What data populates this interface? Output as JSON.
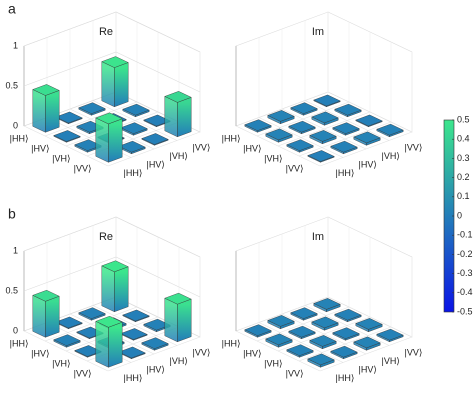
{
  "colorbar": {
    "clim": [
      -0.5,
      0.5
    ],
    "ticks": [
      0.5,
      0.4,
      0.3,
      0.2,
      0.1,
      0,
      -0.1,
      -0.2,
      -0.3,
      -0.4,
      -0.5
    ],
    "colormap": [
      "#0a14e6",
      "#3ce68c"
    ]
  },
  "chart_data": [
    {
      "type": "bar3d",
      "panel_label": "a",
      "title": "Re",
      "rows": [
        "|HH⟩",
        "|HV⟩",
        "|VH⟩",
        "|VV⟩"
      ],
      "columns": [
        "|HH⟩",
        "|HV⟩",
        "|VH⟩",
        "|VV⟩"
      ],
      "values": [
        [
          0.46,
          0.01,
          0.02,
          0.49
        ],
        [
          0.01,
          0.02,
          0.01,
          0.02
        ],
        [
          0.02,
          0.01,
          0.02,
          0.01
        ],
        [
          0.48,
          0.02,
          0.01,
          0.43
        ]
      ],
      "zlim": [
        0,
        1
      ],
      "zticks": [
        0,
        0.5,
        1
      ]
    },
    {
      "type": "bar3d",
      "title": "Im",
      "rows": [
        "|HH⟩",
        "|HV⟩",
        "|VH⟩",
        "|VV⟩"
      ],
      "columns": [
        "|HH⟩",
        "|HV⟩",
        "|VH⟩",
        "|VV⟩"
      ],
      "values": [
        [
          0.02,
          0.03,
          0.02,
          0.01
        ],
        [
          0.03,
          0.02,
          0.03,
          0.02
        ],
        [
          0.02,
          0.03,
          0.02,
          0.01
        ],
        [
          0.01,
          0.02,
          0.03,
          0.02
        ]
      ],
      "zlim": [
        0,
        1
      ]
    },
    {
      "type": "bar3d",
      "panel_label": "b",
      "title": "Re",
      "rows": [
        "|HH⟩",
        "|HV⟩",
        "|VH⟩",
        "|VV⟩"
      ],
      "columns": [
        "|HH⟩",
        "|HV⟩",
        "|VH⟩",
        "|VV⟩"
      ],
      "values": [
        [
          0.45,
          0.01,
          0.02,
          0.5
        ],
        [
          0.02,
          0.01,
          0.02,
          0.01
        ],
        [
          0.01,
          0.02,
          0.01,
          0.02
        ],
        [
          0.5,
          0.01,
          0.02,
          0.47
        ]
      ],
      "zlim": [
        0,
        1
      ],
      "zticks": [
        0,
        0.5,
        1
      ]
    },
    {
      "type": "bar3d",
      "title": "Im",
      "rows": [
        "|HH⟩",
        "|HV⟩",
        "|VH⟩",
        "|VV⟩"
      ],
      "columns": [
        "|HH⟩",
        "|HV⟩",
        "|VH⟩",
        "|VV⟩"
      ],
      "values": [
        [
          0.02,
          0.03,
          0.02,
          0.03
        ],
        [
          0.03,
          0.02,
          0.03,
          0.02
        ],
        [
          0.02,
          0.03,
          0.02,
          0.03
        ],
        [
          0.03,
          0.02,
          0.03,
          0.02
        ]
      ],
      "zlim": [
        0,
        1
      ]
    }
  ]
}
